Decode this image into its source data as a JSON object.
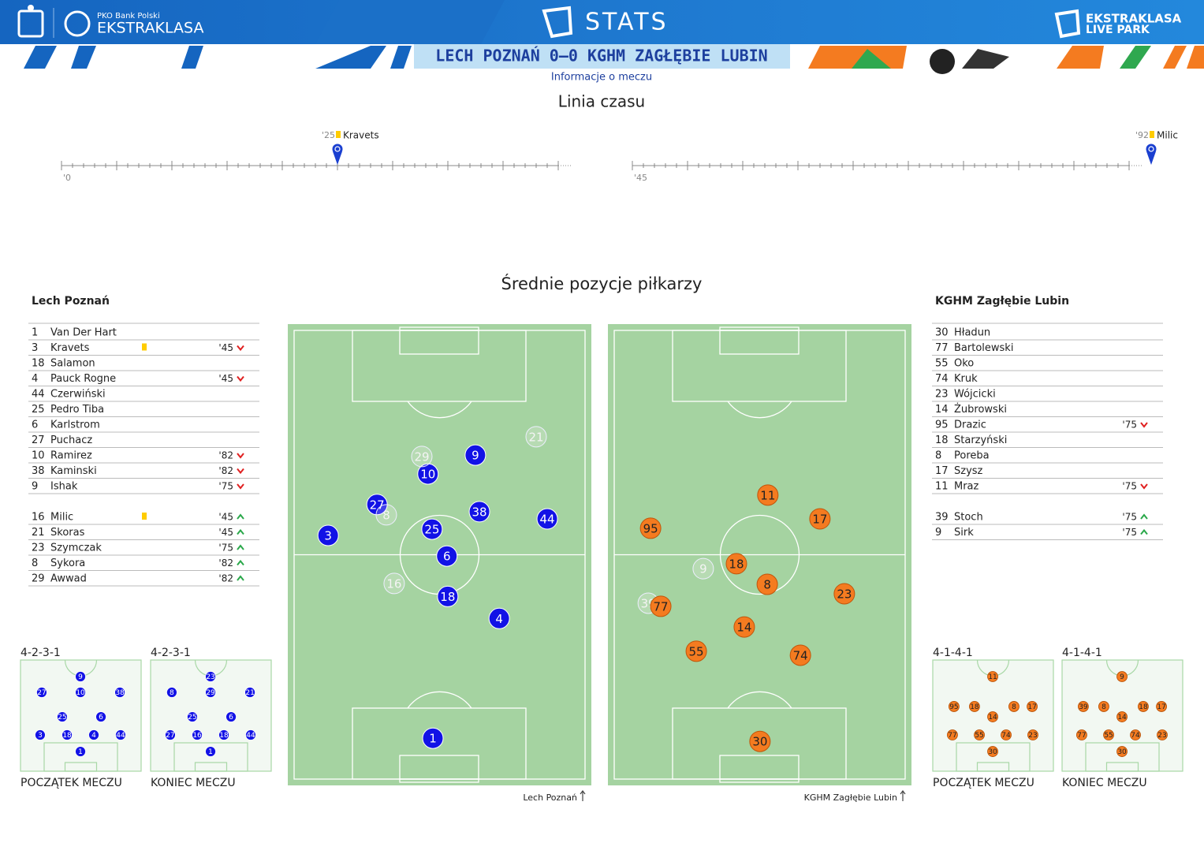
{
  "header": {
    "sponsor": "PKO Bank Polski",
    "league": "EKSTRAKLASA",
    "stats": "STATS",
    "live_top": "EKSTRAKLASA",
    "live_bottom": "LIVE PARK",
    "match": "LECH POZNAŃ 0–0 KGHM ZAGŁĘBIE LUBIN",
    "subtitle": "Informacje o meczu"
  },
  "timeline": {
    "title": "Linia czasu",
    "halves": [
      {
        "start_label": "'0",
        "range": [
          0,
          45
        ],
        "events": [
          {
            "minute": 25,
            "minute_label": "'25",
            "card": "yellow",
            "player": "Kravets"
          }
        ]
      },
      {
        "start_label": "'45",
        "range": [
          45,
          90
        ],
        "events": [
          {
            "minute": 92,
            "minute_label": "'92",
            "card": "yellow",
            "player": "Milic"
          }
        ]
      }
    ]
  },
  "positions": {
    "title": "Średnie pozycje piłkarzy",
    "teams": [
      {
        "name": "Lech Poznań",
        "color": "#1212e6",
        "lineup": [
          {
            "number": 1,
            "name": "Van Der Hart"
          },
          {
            "number": 3,
            "name": "Kravets",
            "card": "yellow",
            "sub": {
              "label": "'45",
              "dir": "out"
            }
          },
          {
            "number": 18,
            "name": "Salamon"
          },
          {
            "number": 4,
            "name": "Pauck Rogne",
            "sub": {
              "label": "'45",
              "dir": "out"
            }
          },
          {
            "number": 44,
            "name": "Czerwiński"
          },
          {
            "number": 25,
            "name": "Pedro Tiba"
          },
          {
            "number": 6,
            "name": "Karlstrom"
          },
          {
            "number": 27,
            "name": "Puchacz"
          },
          {
            "number": 10,
            "name": "Ramirez",
            "sub": {
              "label": "'82",
              "dir": "out"
            }
          },
          {
            "number": 38,
            "name": "Kaminski",
            "sub": {
              "label": "'82",
              "dir": "out"
            }
          },
          {
            "number": 9,
            "name": "Ishak",
            "sub": {
              "label": "'75",
              "dir": "out"
            }
          }
        ],
        "substitutes": [
          {
            "number": 16,
            "name": "Milic",
            "card": "yellow",
            "sub": {
              "label": "'45",
              "dir": "in"
            }
          },
          {
            "number": 21,
            "name": "Skoras",
            "sub": {
              "label": "'45",
              "dir": "in"
            }
          },
          {
            "number": 23,
            "name": "Szymczak",
            "sub": {
              "label": "'75",
              "dir": "in"
            }
          },
          {
            "number": 8,
            "name": "Sykora",
            "sub": {
              "label": "'82",
              "dir": "in"
            }
          },
          {
            "number": 29,
            "name": "Awwad",
            "sub": {
              "label": "'82",
              "dir": "in"
            }
          }
        ],
        "average": [
          {
            "number": 1,
            "x": 47.7,
            "y": 90.9
          },
          {
            "number": 3,
            "x": 11.7,
            "y": 45.7
          },
          {
            "number": 4,
            "x": 70.5,
            "y": 64.2
          },
          {
            "number": 6,
            "x": 52.5,
            "y": 50.3
          },
          {
            "number": 18,
            "x": 52.8,
            "y": 59.3
          },
          {
            "number": 25,
            "x": 47.4,
            "y": 44.3
          },
          {
            "number": 27,
            "x": 28.5,
            "y": 38.8
          },
          {
            "number": 38,
            "x": 63.7,
            "y": 40.4
          },
          {
            "number": 44,
            "x": 87.0,
            "y": 42.0
          },
          {
            "number": 10,
            "x": 46.0,
            "y": 32.0
          },
          {
            "number": 9,
            "x": 62.3,
            "y": 27.8
          },
          {
            "number": 29,
            "x": 43.9,
            "y": 28.1,
            "substitute": true
          },
          {
            "number": 21,
            "x": 83.2,
            "y": 23.7,
            "substitute": true
          },
          {
            "number": 8,
            "x": 31.7,
            "y": 41.1,
            "substitute": true
          },
          {
            "number": 16,
            "x": 34.4,
            "y": 56.4,
            "substitute": true
          }
        ],
        "formations": [
          {
            "label": "4-2-3-1",
            "caption": "POCZĄTEK MECZU",
            "players": [
              {
                "number": 9,
                "x": 49.7,
                "y": 14.9
              },
              {
                "number": 27,
                "x": 17.6,
                "y": 29.1
              },
              {
                "number": 10,
                "x": 49.7,
                "y": 29.1
              },
              {
                "number": 38,
                "x": 82.4,
                "y": 29.1
              },
              {
                "number": 25,
                "x": 34.6,
                "y": 51.1
              },
              {
                "number": 6,
                "x": 66.7,
                "y": 51.1
              },
              {
                "number": 3,
                "x": 16.3,
                "y": 67.4
              },
              {
                "number": 18,
                "x": 38.6,
                "y": 67.4
              },
              {
                "number": 4,
                "x": 60.8,
                "y": 67.4
              },
              {
                "number": 44,
                "x": 83.0,
                "y": 67.4
              },
              {
                "number": 1,
                "x": 49.7,
                "y": 82.3
              }
            ]
          },
          {
            "label": "4-2-3-1",
            "caption": "KONIEC MECZU",
            "players": [
              {
                "number": 23,
                "x": 49.7,
                "y": 14.9
              },
              {
                "number": 8,
                "x": 17.6,
                "y": 29.1
              },
              {
                "number": 29,
                "x": 49.7,
                "y": 29.1
              },
              {
                "number": 21,
                "x": 82.4,
                "y": 29.1
              },
              {
                "number": 25,
                "x": 34.6,
                "y": 51.1
              },
              {
                "number": 6,
                "x": 66.7,
                "y": 51.1
              },
              {
                "number": 27,
                "x": 16.3,
                "y": 67.4
              },
              {
                "number": 16,
                "x": 38.6,
                "y": 67.4
              },
              {
                "number": 18,
                "x": 60.8,
                "y": 67.4
              },
              {
                "number": 44,
                "x": 83.0,
                "y": 67.4
              },
              {
                "number": 1,
                "x": 49.7,
                "y": 82.3
              }
            ]
          }
        ]
      },
      {
        "name": "KGHM Zagłębie Lubin",
        "color": "#f47b20",
        "lineup": [
          {
            "number": 30,
            "name": "Hładun"
          },
          {
            "number": 77,
            "name": "Bartolewski"
          },
          {
            "number": 55,
            "name": "Oko"
          },
          {
            "number": 74,
            "name": "Kruk"
          },
          {
            "number": 23,
            "name": "Wójcicki"
          },
          {
            "number": 14,
            "name": "Żubrowski"
          },
          {
            "number": 95,
            "name": "Drazic",
            "sub": {
              "label": "'75",
              "dir": "out"
            }
          },
          {
            "number": 18,
            "name": "Starzyński"
          },
          {
            "number": 8,
            "name": "Poreba"
          },
          {
            "number": 17,
            "name": "Szysz"
          },
          {
            "number": 11,
            "name": "Mraz",
            "sub": {
              "label": "'75",
              "dir": "out"
            }
          }
        ],
        "substitutes": [
          {
            "number": 39,
            "name": "Stoch",
            "sub": {
              "label": "'75",
              "dir": "in"
            }
          },
          {
            "number": 9,
            "name": "Sirk",
            "sub": {
              "label": "'75",
              "dir": "in"
            }
          }
        ],
        "average": [
          {
            "number": 30,
            "x": 50.1,
            "y": 91.6
          },
          {
            "number": 55,
            "x": 28.2,
            "y": 71.5
          },
          {
            "number": 74,
            "x": 64.0,
            "y": 72.4
          },
          {
            "number": 14,
            "x": 44.7,
            "y": 66.1
          },
          {
            "number": 39,
            "x": 11.7,
            "y": 60.8,
            "substitute": true
          },
          {
            "number": 77,
            "x": 16.0,
            "y": 61.5
          },
          {
            "number": 8,
            "x": 52.6,
            "y": 56.6
          },
          {
            "number": 9,
            "x": 30.6,
            "y": 53.1,
            "substitute": true
          },
          {
            "number": 18,
            "x": 42.0,
            "y": 52.0
          },
          {
            "number": 23,
            "x": 79.1,
            "y": 58.7
          },
          {
            "number": 95,
            "x": 12.5,
            "y": 44.1
          },
          {
            "number": 11,
            "x": 52.8,
            "y": 36.7
          },
          {
            "number": 17,
            "x": 70.7,
            "y": 42.0
          }
        ],
        "formations": [
          {
            "label": "4-1-4-1",
            "caption": "POCZĄTEK MECZU",
            "players": [
              {
                "number": 11,
                "x": 49.7,
                "y": 14.9
              },
              {
                "number": 95,
                "x": 17.6,
                "y": 41.8
              },
              {
                "number": 18,
                "x": 34.6,
                "y": 41.8
              },
              {
                "number": 14,
                "x": 49.7,
                "y": 51.1
              },
              {
                "number": 8,
                "x": 67.3,
                "y": 41.8
              },
              {
                "number": 17,
                "x": 82.4,
                "y": 41.8
              },
              {
                "number": 77,
                "x": 16.3,
                "y": 67.4
              },
              {
                "number": 55,
                "x": 38.6,
                "y": 67.4
              },
              {
                "number": 74,
                "x": 60.8,
                "y": 67.4
              },
              {
                "number": 23,
                "x": 83.0,
                "y": 67.4
              },
              {
                "number": 30,
                "x": 49.7,
                "y": 82.3
              }
            ]
          },
          {
            "label": "4-1-4-1",
            "caption": "KONIEC MECZU",
            "players": [
              {
                "number": 9,
                "x": 49.7,
                "y": 14.9
              },
              {
                "number": 39,
                "x": 17.6,
                "y": 41.8
              },
              {
                "number": 8,
                "x": 34.6,
                "y": 41.8
              },
              {
                "number": 14,
                "x": 49.7,
                "y": 51.1
              },
              {
                "number": 18,
                "x": 67.3,
                "y": 41.8
              },
              {
                "number": 17,
                "x": 82.4,
                "y": 41.8
              },
              {
                "number": 77,
                "x": 16.3,
                "y": 67.4
              },
              {
                "number": 55,
                "x": 38.6,
                "y": 67.4
              },
              {
                "number": 74,
                "x": 60.8,
                "y": 67.4
              },
              {
                "number": 23,
                "x": 83.0,
                "y": 67.4
              },
              {
                "number": 30,
                "x": 49.7,
                "y": 82.3
              }
            ]
          }
        ]
      }
    ]
  }
}
